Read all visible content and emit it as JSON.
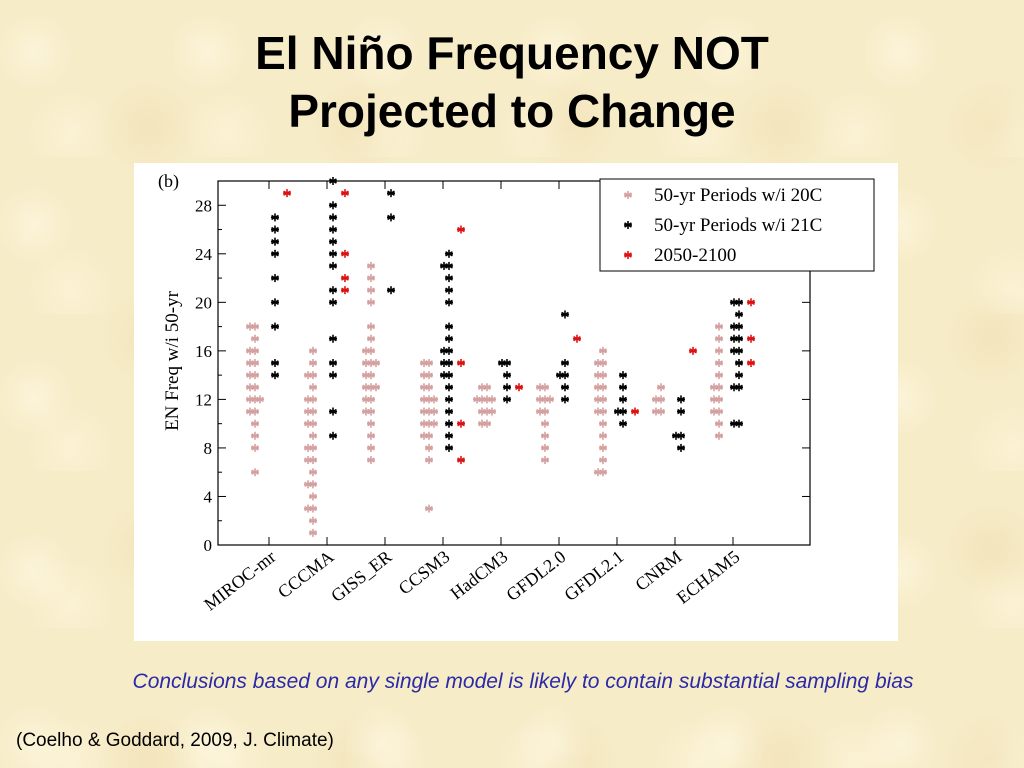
{
  "slide": {
    "title_line1": "El Niño Frequency NOT",
    "title_line2": "Projected to Change",
    "conclusion": "Conclusions based on any single model is likely to contain substantial sampling bias",
    "citation": "(Coelho & Goddard, 2009, J. Climate)"
  },
  "chart_data": {
    "type": "scatter",
    "panel_label": "(b)",
    "ylabel": "EN Freq w/i 50-yr",
    "xlabel": "",
    "ylim": [
      0,
      30
    ],
    "yticks": [
      0,
      4,
      8,
      12,
      16,
      20,
      24,
      28
    ],
    "categories": [
      "MIROC-mr",
      "CCCMA",
      "GISS_ER",
      "CCSM3",
      "HadCM3",
      "GFDL2.0",
      "GFDL2.1",
      "CNRM",
      "ECHAM5"
    ],
    "grid": false,
    "legend_position": "top-right",
    "colors": {
      "20C": "#d4a0a0",
      "21C": "#000000",
      "2050-2100": "#dd1111"
    },
    "series": [
      {
        "name": "50-yr Periods w/i 20C",
        "color": "#d4a0a0",
        "values": [
          [
            6,
            8,
            9,
            10,
            11,
            11,
            12,
            12,
            12,
            13,
            13,
            14,
            14,
            15,
            15,
            16,
            16,
            17,
            18,
            18
          ],
          [
            1,
            2,
            3,
            3,
            4,
            5,
            5,
            6,
            7,
            7,
            8,
            8,
            9,
            10,
            10,
            11,
            11,
            12,
            12,
            13,
            14,
            14,
            15,
            16
          ],
          [
            7,
            8,
            9,
            10,
            11,
            11,
            12,
            12,
            13,
            13,
            13,
            14,
            14,
            15,
            15,
            15,
            16,
            16,
            17,
            18,
            20,
            21,
            22,
            23
          ],
          [
            3,
            7,
            8,
            9,
            9,
            10,
            10,
            10,
            11,
            11,
            11,
            12,
            12,
            12,
            13,
            13,
            14,
            14,
            15,
            15
          ],
          [
            10,
            10,
            11,
            11,
            11,
            12,
            12,
            12,
            12,
            13,
            13
          ],
          [
            7,
            8,
            9,
            10,
            11,
            11,
            12,
            12,
            12,
            13,
            13
          ],
          [
            6,
            6,
            7,
            8,
            9,
            10,
            11,
            11,
            12,
            12,
            13,
            13,
            14,
            14,
            15,
            15,
            16
          ],
          [
            11,
            11,
            12,
            12,
            13
          ],
          [
            9,
            10,
            11,
            11,
            12,
            12,
            13,
            13,
            14,
            15,
            16,
            17,
            18
          ]
        ]
      },
      {
        "name": "50-yr Periods w/i 21C",
        "color": "#000000",
        "values": [
          [
            14,
            15,
            18,
            20,
            22,
            24,
            25,
            26,
            27
          ],
          [
            9,
            11,
            14,
            15,
            17,
            20,
            21,
            23,
            24,
            25,
            26,
            27,
            28,
            30
          ],
          [
            21,
            27,
            29
          ],
          [
            8,
            9,
            10,
            11,
            12,
            13,
            14,
            14,
            15,
            15,
            16,
            16,
            17,
            18,
            20,
            21,
            22,
            23,
            23,
            24
          ],
          [
            12,
            13,
            14,
            15,
            15
          ],
          [
            12,
            13,
            14,
            14,
            15,
            19
          ],
          [
            10,
            11,
            11,
            12,
            13,
            14
          ],
          [
            8,
            9,
            9,
            11,
            12
          ],
          [
            10,
            10,
            13,
            13,
            14,
            15,
            16,
            16,
            17,
            17,
            18,
            18,
            19,
            20,
            20
          ]
        ]
      },
      {
        "name": "2050-2100",
        "color": "#dd1111",
        "values": [
          [
            29
          ],
          [
            21,
            22,
            24,
            29
          ],
          [],
          [
            7,
            10,
            15,
            26
          ],
          [
            13
          ],
          [
            17
          ],
          [
            11
          ],
          [
            16
          ],
          [
            15,
            17,
            20
          ]
        ]
      }
    ],
    "legend": [
      "50-yr Periods w/i 20C",
      "50-yr Periods w/i 21C",
      "2050-2100"
    ]
  }
}
